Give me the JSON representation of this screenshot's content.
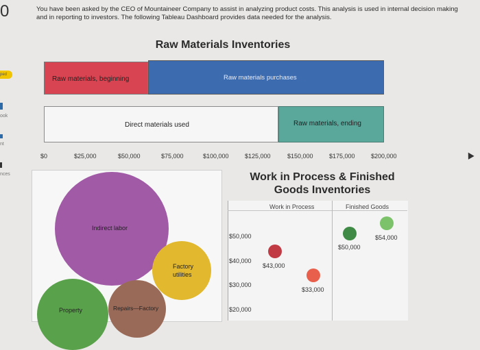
{
  "question": {
    "number": "0",
    "intro": "You have been asked by the CEO of Mountaineer Company to assist in analyzing product costs. This analysis is used in internal decision making and in reporting to investors. The following Tableau Dashboard provides data needed for the analysis."
  },
  "sidebar": {
    "badge": "ped",
    "items": [
      "ook",
      "nt",
      "nces"
    ]
  },
  "dashboard": {
    "title": "Raw Materials Inventories",
    "bars": {
      "raw_beginning": "Raw materials, beginning",
      "raw_purchases": "Raw materials purchases",
      "direct_used": "Direct materials used",
      "raw_ending": "Raw materials, ending"
    },
    "axis_ticks": [
      "$0",
      "$25,000",
      "$50,000",
      "$75,000",
      "$100,000",
      "$125,000",
      "$150,000",
      "$175,000",
      "$200,000"
    ],
    "colors": {
      "red": "#d84451",
      "blue": "#3d6bb0",
      "teal": "#5aa79b"
    }
  },
  "bubbles": {
    "indirect_labor": "Indirect labor",
    "factory_utilities": "Factory utilities",
    "property": "Property",
    "repairs": "Repairs—Factory"
  },
  "wip": {
    "title": "Work in Process & Finished Goods Inventories",
    "col_wip": "Work in Process",
    "col_fg": "Finished Goods",
    "y_ticks": [
      "$50,000",
      "$40,000",
      "$30,000",
      "$20,000"
    ],
    "points": {
      "wip_begin": "$43,000",
      "wip_end": "$33,000",
      "fg_begin": "$50,000",
      "fg_end": "$54,000"
    }
  }
}
